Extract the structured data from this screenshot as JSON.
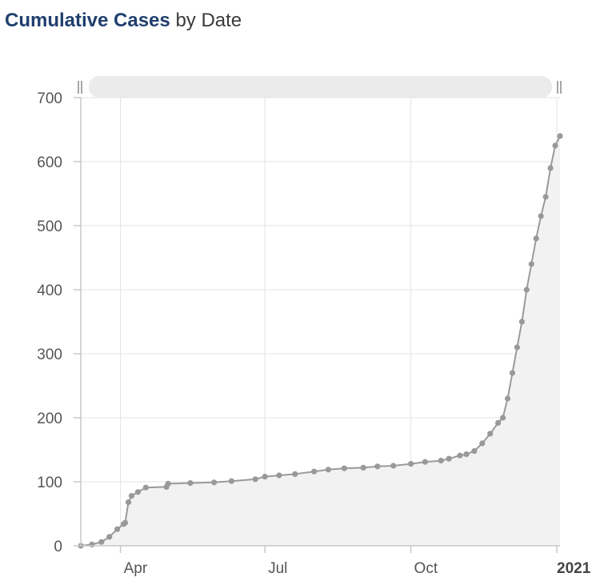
{
  "title": {
    "strong": "Cumulative Cases",
    "rest": "by Date"
  },
  "chart_data": {
    "type": "area",
    "title": "Cumulative Cases by Date",
    "xlabel": "",
    "ylabel": "",
    "x_range": [
      "2020-03-07",
      "2021-01-03"
    ],
    "ylim": [
      0,
      700
    ],
    "y_ticks": [
      0,
      100,
      200,
      300,
      400,
      500,
      600,
      700
    ],
    "x_ticks": [
      {
        "date": "2020-04-01",
        "label": "Apr",
        "bold": false
      },
      {
        "date": "2020-07-01",
        "label": "Jul",
        "bold": false
      },
      {
        "date": "2020-10-01",
        "label": "Oct",
        "bold": false
      },
      {
        "date": "2021-01-01",
        "label": "2021",
        "bold": true
      }
    ],
    "grid": true,
    "line_color": "#999999",
    "fill_color": "#f2f2f2",
    "series": [
      {
        "values": [
          [
            "2020-03-07",
            0
          ],
          [
            "2020-03-14",
            2
          ],
          [
            "2020-03-20",
            6
          ],
          [
            "2020-03-25",
            14
          ],
          [
            "2020-03-30",
            26
          ],
          [
            "2020-04-03",
            34
          ],
          [
            "2020-04-04",
            36
          ],
          [
            "2020-04-06",
            68
          ],
          [
            "2020-04-08",
            78
          ],
          [
            "2020-04-12",
            84
          ],
          [
            "2020-04-17",
            91
          ],
          [
            "2020-04-30",
            92
          ],
          [
            "2020-05-01",
            97
          ],
          [
            "2020-05-15",
            98
          ],
          [
            "2020-05-30",
            99
          ],
          [
            "2020-06-10",
            101
          ],
          [
            "2020-06-25",
            104
          ],
          [
            "2020-07-01",
            108
          ],
          [
            "2020-07-10",
            110
          ],
          [
            "2020-07-20",
            112
          ],
          [
            "2020-08-01",
            116
          ],
          [
            "2020-08-10",
            119
          ],
          [
            "2020-08-20",
            121
          ],
          [
            "2020-09-01",
            122
          ],
          [
            "2020-09-10",
            124
          ],
          [
            "2020-09-20",
            125
          ],
          [
            "2020-10-01",
            128
          ],
          [
            "2020-10-10",
            131
          ],
          [
            "2020-10-20",
            133
          ],
          [
            "2020-10-25",
            136
          ],
          [
            "2020-11-01",
            141
          ],
          [
            "2020-11-05",
            143
          ],
          [
            "2020-11-10",
            148
          ],
          [
            "2020-11-15",
            160
          ],
          [
            "2020-11-20",
            175
          ],
          [
            "2020-11-25",
            192
          ],
          [
            "2020-11-28",
            200
          ],
          [
            "2020-12-01",
            230
          ],
          [
            "2020-12-04",
            270
          ],
          [
            "2020-12-07",
            310
          ],
          [
            "2020-12-10",
            350
          ],
          [
            "2020-12-13",
            400
          ],
          [
            "2020-12-16",
            440
          ],
          [
            "2020-12-19",
            480
          ],
          [
            "2020-12-22",
            515
          ],
          [
            "2020-12-25",
            545
          ],
          [
            "2020-12-28",
            590
          ],
          [
            "2020-12-31",
            625
          ],
          [
            "2021-01-03",
            640
          ]
        ]
      }
    ],
    "range_selector": true
  }
}
